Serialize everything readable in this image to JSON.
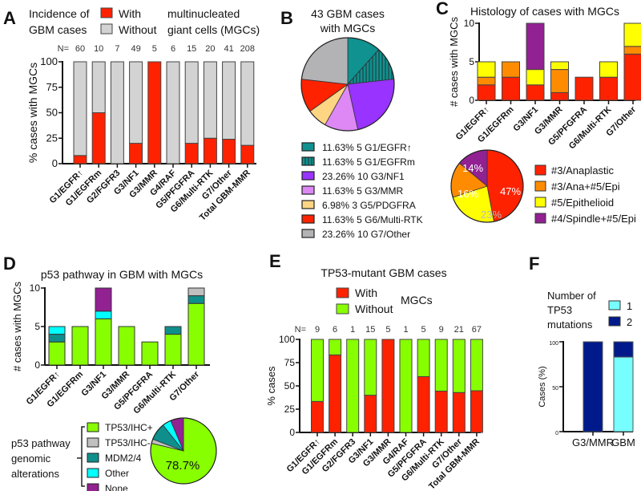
{
  "figure": {
    "panels": [
      "A",
      "B",
      "C",
      "D",
      "E",
      "F"
    ]
  },
  "chart_data": [
    {
      "panel": "A",
      "type": "bar",
      "stacked": true,
      "title_lines": [
        "Incidence of",
        "GBM cases"
      ],
      "legend": [
        {
          "label": "With",
          "color": "#ff2200"
        },
        {
          "label": "Without",
          "color": "#d3d3d3"
        }
      ],
      "legend_suffix": [
        "multinucleated",
        "giant cells (MGCs)"
      ],
      "legend_placement": "top",
      "n_label": "N=",
      "n_values": [
        "60",
        "10",
        "7",
        "49",
        "5",
        "6",
        "15",
        "20",
        "41",
        "208"
      ],
      "categories": [
        "G1/EGFR↑",
        "G1/EGFRm",
        "G2/FGFR3",
        "G3/NF1",
        "G3/MMR",
        "G4/RAF",
        "G5/PFGFRA",
        "G6/Multi-RTK",
        "G7/Other",
        "Total GBM-MMR"
      ],
      "series": [
        {
          "name": "With",
          "color": "#ff2200",
          "values": [
            8,
            50,
            0,
            20,
            100,
            0,
            20,
            25,
            24,
            18
          ]
        },
        {
          "name": "Without",
          "color": "#d3d3d3",
          "values": [
            92,
            50,
            100,
            80,
            0,
            100,
            80,
            75,
            76,
            82
          ]
        }
      ],
      "ylabel": "% cases with MGCs",
      "ylim": [
        0,
        100
      ],
      "yticks": [
        "0",
        "25",
        "50",
        "75",
        "100"
      ]
    },
    {
      "panel": "B",
      "type": "pie",
      "title_lines": [
        "43 GBM cases",
        "with MGCs"
      ],
      "slices": [
        {
          "label": "5 G1/EGFR↑",
          "pct": "11.63%",
          "value": 5,
          "color": "#0f9290",
          "pattern": "solid"
        },
        {
          "label": "5 G1/EGFRm",
          "pct": "11.63%",
          "value": 5,
          "color": "#0f9290",
          "pattern": "hatched"
        },
        {
          "label": "10 G3/NF1",
          "pct": "23.26%",
          "value": 10,
          "color": "#9933ff",
          "pattern": "solid"
        },
        {
          "label": "5 G3/MMR",
          "pct": "11.63%",
          "value": 5,
          "color": "#dd88f5",
          "pattern": "solid"
        },
        {
          "label": "3 G5/PDGFRA",
          "pct": "6.98%",
          "value": 3,
          "color": "#fdd583",
          "pattern": "solid"
        },
        {
          "label": "5 G6/Multi-RTK",
          "pct": "11.63%",
          "value": 5,
          "color": "#ff2200",
          "pattern": "solid"
        },
        {
          "label": "10 G7/Other",
          "pct": "23.26%",
          "value": 10,
          "color": "#b3b3b5",
          "pattern": "solid"
        }
      ],
      "legend_placement": "bottom"
    },
    {
      "panel": "C",
      "type": "bar",
      "stacked": true,
      "title": "Histology of cases with MGCs",
      "categories": [
        "G1/EGFR↑",
        "G1/EGFRm",
        "G3/NF1",
        "G3/MMR",
        "G5/PFGFRA",
        "G6/Multi-RTK",
        "G7/Other"
      ],
      "series": [
        {
          "name": "#3/Anaplastic",
          "color": "#ff2200",
          "values": [
            2,
            3,
            2,
            1,
            3,
            3,
            6
          ]
        },
        {
          "name": "#3/Ana+#5/Epi",
          "color": "#ff8c00",
          "values": [
            1,
            2,
            0,
            3,
            0,
            0,
            1
          ]
        },
        {
          "name": "#5/Epithelioid",
          "color": "#ffff00",
          "values": [
            2,
            0,
            2,
            1,
            0,
            2,
            3
          ]
        },
        {
          "name": "#4/Spindle+#5/Epi",
          "color": "#922192",
          "values": [
            0,
            0,
            6,
            0,
            0,
            0,
            0
          ]
        }
      ],
      "ylabel": "# cases with MGCs",
      "ylim": [
        0,
        10
      ],
      "yticks": [
        "0",
        "5",
        "10"
      ],
      "pie": {
        "slices": [
          {
            "name": "#3/Anaplastic",
            "pct": 47,
            "label": "47%",
            "color": "#ff2200"
          },
          {
            "name": "#5/Epithelioid",
            "pct": 23,
            "label": "23%",
            "color": "#ffff00"
          },
          {
            "name": "#3/Ana+#5/Epi",
            "pct": 16,
            "label": "16%",
            "color": "#ff8c00"
          },
          {
            "name": "#4/Spindle+#5/Epi",
            "pct": 14,
            "label": "14%",
            "color": "#922192"
          }
        ]
      },
      "legend": [
        "#3/Anaplastic",
        "#3/Ana+#5/Epi",
        "#5/Epithelioid",
        "#4/Spindle+#5/Epi"
      ],
      "legend_placement": "bottom-right"
    },
    {
      "panel": "D",
      "type": "bar",
      "stacked": true,
      "title": "p53 pathway in GBM with MGCs",
      "categories": [
        "G1/EGFR↑",
        "G1/EGFRm",
        "G3/NF1",
        "G3/MMR",
        "G5/PFGFRA",
        "G6/Multi-RTK",
        "G7/Other"
      ],
      "series": [
        {
          "name": "TP53/IHC+",
          "color": "#88ff00",
          "values": [
            3,
            5,
            6,
            5,
            3,
            4,
            8
          ]
        },
        {
          "name": "MDM2/4",
          "color": "#0f8f8c",
          "values": [
            1,
            0,
            0,
            0,
            0,
            1,
            1
          ]
        },
        {
          "name": "Other",
          "color": "#00ffff",
          "values": [
            1,
            0,
            1,
            0,
            0,
            0,
            0
          ]
        },
        {
          "name": "None",
          "color": "#922192",
          "values": [
            0,
            0,
            3,
            0,
            0,
            0,
            0
          ]
        },
        {
          "name": "TP53/IHC-",
          "color": "#c0c0c0",
          "values": [
            0,
            0,
            0,
            0,
            0,
            0,
            1
          ]
        }
      ],
      "ylabel": "# cases with MGCs",
      "ylim": [
        0,
        10
      ],
      "yticks": [
        "0",
        "5",
        "10"
      ],
      "legend_title_lines": [
        "p53 pathway",
        "genomic",
        "alterations"
      ],
      "legend": [
        {
          "label": "TP53/IHC+",
          "color": "#88ff00"
        },
        {
          "label": "TP53/IHC-",
          "color": "#c0c0c0"
        },
        {
          "label": "MDM2/4",
          "color": "#0f8f8c"
        },
        {
          "label": "Other",
          "color": "#00ffff"
        },
        {
          "label": "None",
          "color": "#922192"
        }
      ],
      "pie": {
        "slices": [
          {
            "name": "TP53/IHC+",
            "pct": 78.7,
            "color": "#88ff00"
          },
          {
            "name": "TP53/IHC-",
            "pct": 2.1,
            "color": "#c0c0c0"
          },
          {
            "name": "MDM2/4",
            "pct": 8.5,
            "color": "#0f8f8c"
          },
          {
            "name": "Other",
            "pct": 4.3,
            "color": "#00ffff"
          },
          {
            "name": "None",
            "pct": 6.4,
            "color": "#922192"
          }
        ],
        "label": "78.7%"
      }
    },
    {
      "panel": "E",
      "type": "bar",
      "stacked": true,
      "title": "TP53-mutant GBM cases",
      "legend": [
        {
          "label": "With",
          "color": "#ff2200"
        },
        {
          "label": "Without",
          "color": "#88ff00"
        }
      ],
      "legend_suffix": "MGCs",
      "legend_placement": "top",
      "n_label": "N=",
      "n_values": [
        "9",
        "6",
        "1",
        "15",
        "5",
        "1",
        "5",
        "9",
        "21",
        "67"
      ],
      "categories": [
        "G1/EGFR↑",
        "G1/EGFRm",
        "G2/FGFR3",
        "G3/NF1",
        "G3/MMR",
        "G4/RAF",
        "G5/PFGFRA",
        "G6/Multi-RTK",
        "G7/Other",
        "Total GBM-MMR"
      ],
      "series": [
        {
          "name": "With",
          "color": "#ff2200",
          "values": [
            33.3,
            83.3,
            0,
            40,
            100,
            0,
            60,
            44.4,
            42.9,
            44.8
          ]
        },
        {
          "name": "Without",
          "color": "#88ff00",
          "values": [
            66.7,
            16.7,
            100,
            60,
            0,
            100,
            40,
            55.6,
            57.1,
            55.2
          ]
        }
      ],
      "ylabel": "% cases",
      "ylim": [
        0,
        100
      ],
      "yticks": [
        "0",
        "25",
        "50",
        "75",
        "100"
      ]
    },
    {
      "panel": "F",
      "type": "bar",
      "stacked": true,
      "title_lines": [
        "Number of",
        "TP53",
        "mutations"
      ],
      "legend": [
        {
          "label": "1",
          "color": "#77ffff"
        },
        {
          "label": "2",
          "color": "#001a8c"
        }
      ],
      "legend_placement": "top-right",
      "categories": [
        "G3/MMR",
        "GBM"
      ],
      "series": [
        {
          "name": "1",
          "color": "#77ffff",
          "values": [
            0,
            83
          ]
        },
        {
          "name": "2",
          "color": "#001a8c",
          "values": [
            100,
            17
          ]
        }
      ],
      "ylabel": "Cases (%)",
      "ylim": [
        0,
        100
      ],
      "yticks": [
        "0",
        "50",
        "100"
      ]
    }
  ]
}
